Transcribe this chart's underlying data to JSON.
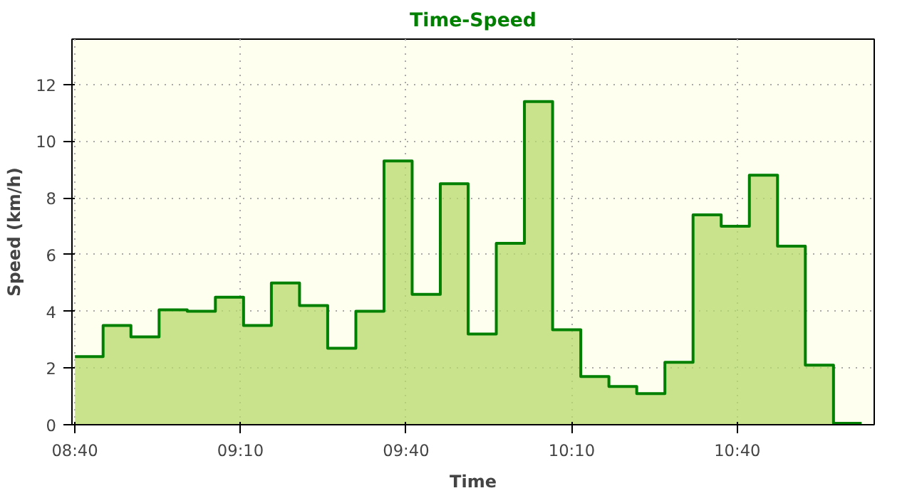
{
  "chart_data": {
    "type": "step",
    "title": "Time-Speed",
    "xlabel": "Time",
    "ylabel": "Speed (km/h)",
    "x": [
      8.667,
      8.752,
      8.836,
      8.921,
      9.006,
      9.091,
      9.176,
      9.26,
      9.345,
      9.43,
      9.515,
      9.6,
      9.685,
      9.77,
      9.854,
      9.939,
      10.024,
      10.109,
      10.194,
      10.279,
      10.363,
      10.448,
      10.533,
      10.618,
      10.703,
      10.788,
      10.872,
      10.957,
      11.042
    ],
    "series": [
      {
        "color": "#008000",
        "values": [
          2.4,
          3.5,
          3.1,
          4.05,
          4.0,
          4.5,
          3.5,
          5.0,
          4.2,
          2.7,
          4.0,
          9.3,
          4.6,
          8.5,
          3.2,
          6.4,
          11.4,
          3.35,
          1.7,
          1.35,
          1.1,
          2.2,
          7.4,
          7.0,
          8.8,
          6.3,
          2.1,
          0.05,
          0.05
        ]
      }
    ],
    "xlim": [
      8.658,
      11.08
    ],
    "ylim": [
      0,
      13.6
    ],
    "xticks": [
      {
        "value": 8.6667,
        "label": "08:40"
      },
      {
        "value": 9.1667,
        "label": "09:10"
      },
      {
        "value": 9.6667,
        "label": "09:40"
      },
      {
        "value": 10.1667,
        "label": "10:10"
      },
      {
        "value": 10.6667,
        "label": "10:40"
      }
    ],
    "yticks": [
      0,
      2,
      4,
      6,
      8,
      10,
      12
    ],
    "grid": true
  }
}
